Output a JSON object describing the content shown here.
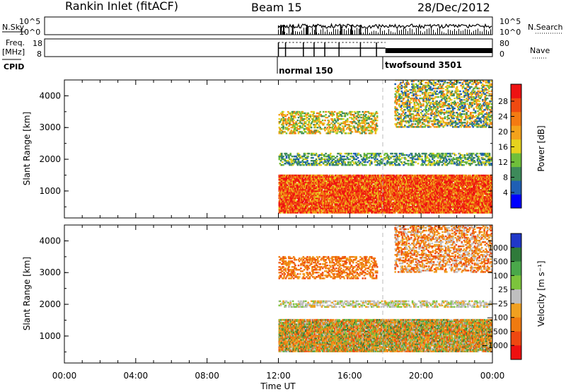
{
  "header": {
    "site": "Rankin Inlet (fitACF)",
    "beam": "Beam 15",
    "date": "28/Dec/2012"
  },
  "top_panels": {
    "nsky": {
      "left_label": "N.Sky",
      "left_ticks": [
        "10^5",
        "10^0"
      ],
      "right_ticks": [
        "10^5",
        "10^0"
      ],
      "right_label": "N.Search"
    },
    "freq": {
      "left_label_line1": "Freq.",
      "left_label_line2": "[MHz]",
      "left_ticks": [
        "18",
        "8"
      ],
      "right_ticks": [
        "80",
        "0"
      ],
      "right_label": "Nave"
    },
    "cpid": {
      "label": "CPID",
      "modes": [
        {
          "name": "normal 150",
          "start_hour": 12.0
        },
        {
          "name": "twofsound 3501",
          "start_hour": 18.0
        }
      ]
    }
  },
  "colors": {
    "power": [
      "#0000ff",
      "#1f5fb4",
      "#3d8a5a",
      "#6fbf3a",
      "#e6d21e",
      "#f4a21b",
      "#f47a12",
      "#f04a10",
      "#ee1212"
    ],
    "velocity": [
      "#2038c8",
      "#2f7a3a",
      "#4aa84a",
      "#7cc43c",
      "#bfbfbf",
      "#f0a020",
      "#f07a10",
      "#ee4810",
      "#ee1010"
    ],
    "dashed_line": "#bbbbbb"
  },
  "chart_data": [
    {
      "type": "heatmap",
      "panel": "power",
      "ylabel": "Slant Range [km]",
      "ylim": [
        150,
        4500
      ],
      "yticks": [
        "1000",
        "2000",
        "3000",
        "4000"
      ],
      "xlim": [
        0,
        24
      ],
      "colorbar": {
        "label": "Power [dB]",
        "ticks": [
          "28",
          "24",
          "20",
          "16",
          "12",
          "8",
          "4"
        ],
        "range": [
          0,
          32
        ]
      },
      "data_coverage_hours": [
        12.0,
        24.0
      ],
      "bands_km": [
        {
          "range_km": [
            300,
            1500
          ],
          "hours": [
            12.0,
            24.0
          ],
          "dominant_value_dB": 26
        },
        {
          "range_km": [
            1800,
            2200
          ],
          "hours": [
            12.0,
            24.0
          ],
          "dominant_value_dB": 10
        },
        {
          "range_km": [
            2800,
            3500
          ],
          "hours": [
            12.0,
            17.5
          ],
          "dominant_value_dB": 15
        },
        {
          "range_km": [
            3000,
            4500
          ],
          "hours": [
            18.5,
            24.0
          ],
          "dominant_value_dB": 14
        }
      ]
    },
    {
      "type": "heatmap",
      "panel": "velocity",
      "ylabel": "Slant Range [km]",
      "ylim": [
        150,
        4500
      ],
      "yticks": [
        "1000",
        "2000",
        "3000",
        "4000"
      ],
      "xlim": [
        0,
        24
      ],
      "colorbar": {
        "label": "Velocity [m s⁻¹]",
        "ticks": [
          "1000",
          "500",
          "100",
          "25",
          "−25",
          "−100",
          "−500",
          "−1000"
        ]
      },
      "data_coverage_hours": [
        12.0,
        24.0
      ],
      "bands_km": [
        {
          "range_km": [
            500,
            1500
          ],
          "hours": [
            12.0,
            24.0
          ],
          "dominant_value_ms": -150
        },
        {
          "range_km": [
            1900,
            2100
          ],
          "hours": [
            12.0,
            24.0
          ],
          "dominant_value_ms": 0
        },
        {
          "range_km": [
            2800,
            3500
          ],
          "hours": [
            12.0,
            17.5
          ],
          "dominant_value_ms": -300
        },
        {
          "range_km": [
            3000,
            4500
          ],
          "hours": [
            18.5,
            24.0
          ],
          "dominant_value_ms": -250
        }
      ]
    }
  ],
  "x_axis": {
    "label": "Time UT",
    "ticks": [
      "00:00",
      "04:00",
      "08:00",
      "12:00",
      "16:00",
      "20:00",
      "00:00"
    ]
  }
}
